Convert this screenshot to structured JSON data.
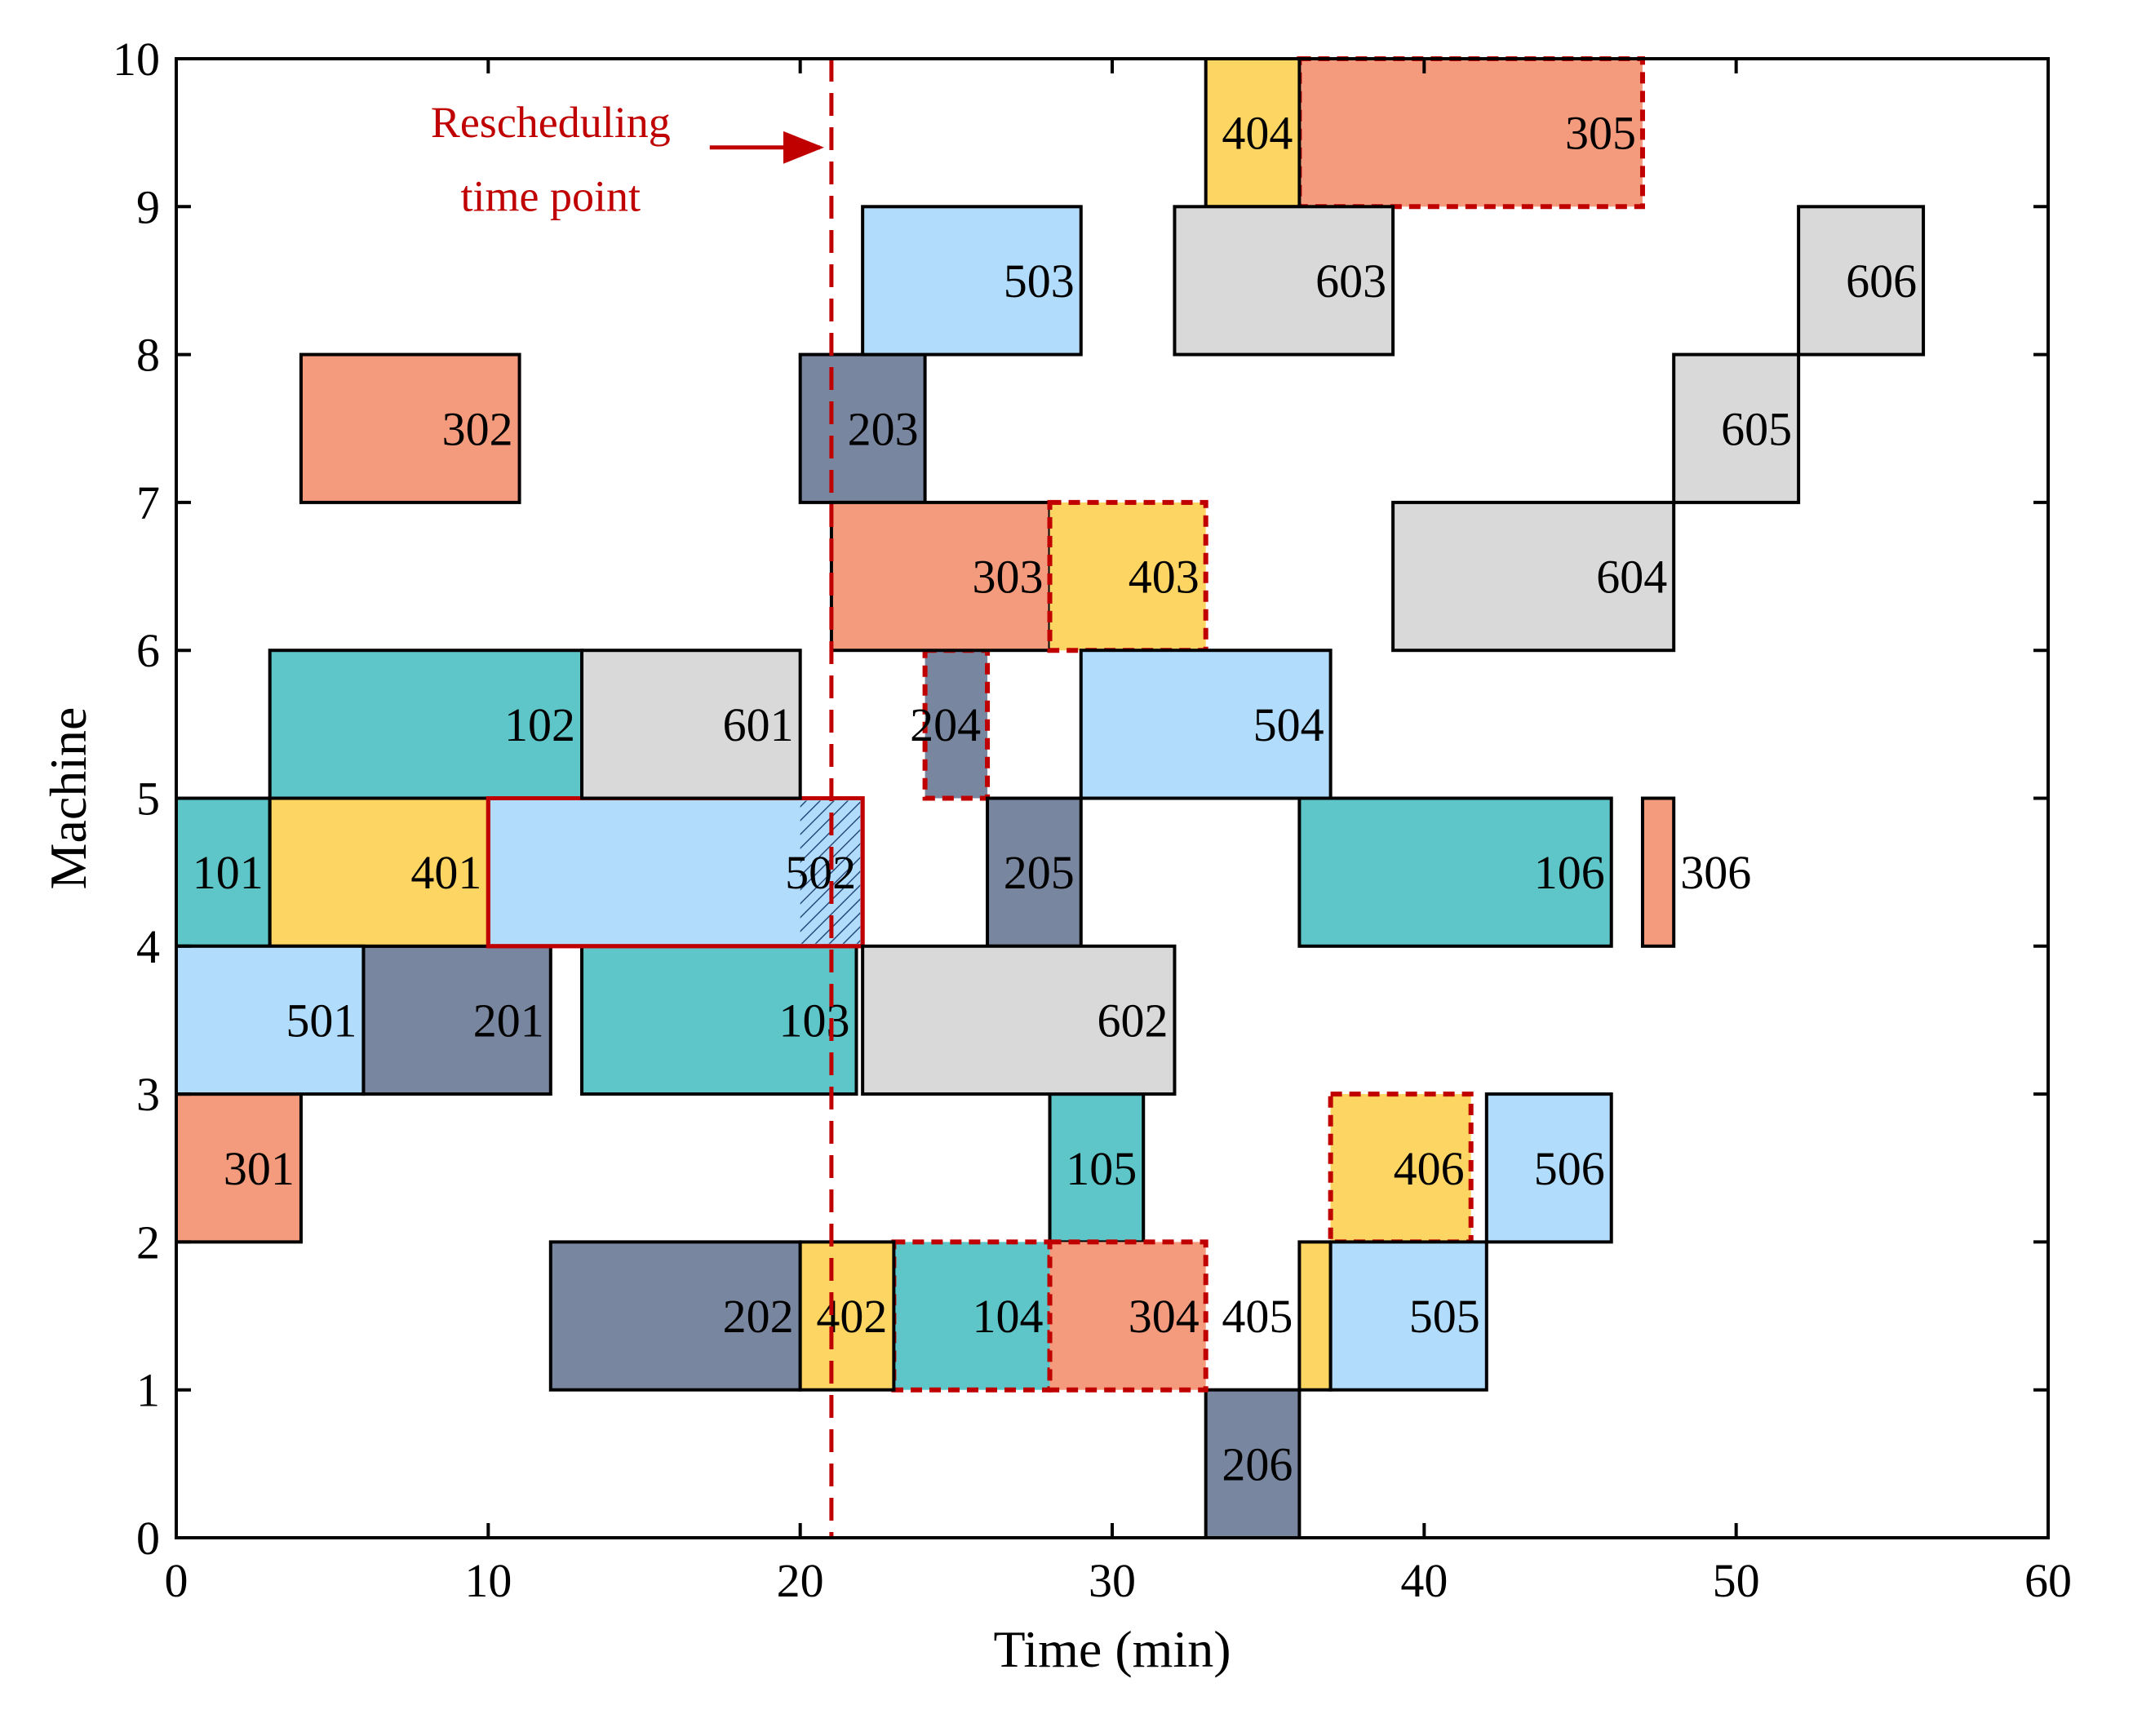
{
  "chart_data": {
    "type": "gantt",
    "title": "",
    "xlabel": "Time (min)",
    "ylabel": "Machine",
    "xlim": [
      0,
      60
    ],
    "ylim": [
      0,
      10
    ],
    "xticks": [
      0,
      10,
      20,
      30,
      40,
      50,
      60
    ],
    "yticks": [
      0,
      1,
      2,
      3,
      4,
      5,
      6,
      7,
      8,
      9,
      10
    ],
    "grid": false,
    "colors": {
      "job1": "#5ec5c8",
      "job2": "#79869f",
      "job3": "#f59b7d",
      "job4": "#fdd562",
      "job5": "#b1dcfc",
      "job6": "#d9d9d9",
      "outline": "#000000",
      "highlight": "#c00000"
    },
    "rescheduling": {
      "time": 21,
      "label_line1": "Rescheduling",
      "label_line2": "time point"
    },
    "operations": [
      {
        "id": "101",
        "job": 1,
        "machine": 5,
        "start": 0,
        "end": 3,
        "style": "normal"
      },
      {
        "id": "102",
        "job": 1,
        "machine": 6,
        "start": 3,
        "end": 13,
        "style": "normal"
      },
      {
        "id": "103",
        "job": 1,
        "machine": 4,
        "start": 13,
        "end": 21.8,
        "style": "normal"
      },
      {
        "id": "104",
        "job": 1,
        "machine": 2,
        "start": 23,
        "end": 28,
        "style": "dashed"
      },
      {
        "id": "105",
        "job": 1,
        "machine": 3,
        "start": 28,
        "end": 31,
        "style": "normal"
      },
      {
        "id": "106",
        "job": 1,
        "machine": 5,
        "start": 36,
        "end": 46,
        "style": "normal"
      },
      {
        "id": "201",
        "job": 2,
        "machine": 4,
        "start": 6,
        "end": 12,
        "style": "normal"
      },
      {
        "id": "202",
        "job": 2,
        "machine": 2,
        "start": 12,
        "end": 20,
        "style": "normal"
      },
      {
        "id": "203",
        "job": 2,
        "machine": 8,
        "start": 20,
        "end": 24,
        "style": "normal"
      },
      {
        "id": "204",
        "job": 2,
        "machine": 6,
        "start": 24,
        "end": 26,
        "style": "dashed"
      },
      {
        "id": "205",
        "job": 2,
        "machine": 5,
        "start": 26,
        "end": 29,
        "style": "normal"
      },
      {
        "id": "206",
        "job": 2,
        "machine": 1,
        "start": 33,
        "end": 36,
        "style": "normal"
      },
      {
        "id": "301",
        "job": 3,
        "machine": 3,
        "start": 0,
        "end": 4,
        "style": "normal"
      },
      {
        "id": "302",
        "job": 3,
        "machine": 8,
        "start": 4,
        "end": 11,
        "style": "normal"
      },
      {
        "id": "303",
        "job": 3,
        "machine": 7,
        "start": 21,
        "end": 28,
        "style": "normal"
      },
      {
        "id": "304",
        "job": 3,
        "machine": 2,
        "start": 28,
        "end": 33,
        "style": "dashed"
      },
      {
        "id": "305",
        "job": 3,
        "machine": 10,
        "start": 36,
        "end": 47,
        "style": "dashed"
      },
      {
        "id": "306",
        "job": 3,
        "machine": 5,
        "start": 47,
        "end": 48,
        "style": "normal",
        "label_side": "right"
      },
      {
        "id": "401",
        "job": 4,
        "machine": 5,
        "start": 3,
        "end": 10,
        "style": "normal"
      },
      {
        "id": "402",
        "job": 4,
        "machine": 2,
        "start": 20,
        "end": 23,
        "style": "normal"
      },
      {
        "id": "403",
        "job": 4,
        "machine": 7,
        "start": 28,
        "end": 33,
        "style": "dashed"
      },
      {
        "id": "404",
        "job": 4,
        "machine": 10,
        "start": 33,
        "end": 36,
        "style": "normal"
      },
      {
        "id": "405",
        "job": 4,
        "machine": 2,
        "start": 36,
        "end": 37,
        "style": "normal",
        "label_side": "left"
      },
      {
        "id": "406",
        "job": 4,
        "machine": 3,
        "start": 37,
        "end": 41.5,
        "style": "dashed"
      },
      {
        "id": "501",
        "job": 5,
        "machine": 4,
        "start": 0,
        "end": 6,
        "style": "normal"
      },
      {
        "id": "502",
        "job": 5,
        "machine": 5,
        "start": 10,
        "end": 22,
        "style": "red-outline",
        "hatch_from": 20
      },
      {
        "id": "503",
        "job": 5,
        "machine": 9,
        "start": 22,
        "end": 29,
        "style": "normal"
      },
      {
        "id": "504",
        "job": 5,
        "machine": 6,
        "start": 29,
        "end": 37,
        "style": "normal"
      },
      {
        "id": "505",
        "job": 5,
        "machine": 2,
        "start": 37,
        "end": 42,
        "style": "normal"
      },
      {
        "id": "506",
        "job": 5,
        "machine": 3,
        "start": 42,
        "end": 46,
        "style": "normal"
      },
      {
        "id": "601",
        "job": 6,
        "machine": 6,
        "start": 13,
        "end": 20,
        "style": "normal"
      },
      {
        "id": "602",
        "job": 6,
        "machine": 4,
        "start": 22,
        "end": 32,
        "style": "normal"
      },
      {
        "id": "603",
        "job": 6,
        "machine": 9,
        "start": 32,
        "end": 39,
        "style": "normal"
      },
      {
        "id": "604",
        "job": 6,
        "machine": 7,
        "start": 39,
        "end": 48,
        "style": "normal"
      },
      {
        "id": "605",
        "job": 6,
        "machine": 8,
        "start": 48,
        "end": 52,
        "style": "normal"
      },
      {
        "id": "606",
        "job": 6,
        "machine": 9,
        "start": 52,
        "end": 56,
        "style": "normal"
      }
    ]
  }
}
